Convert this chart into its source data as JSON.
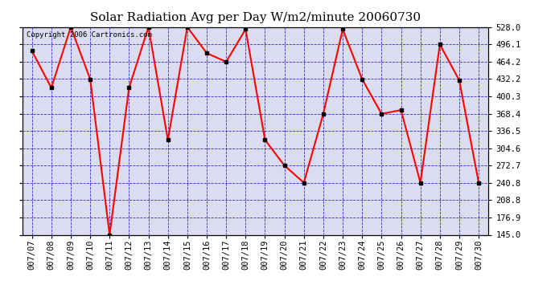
{
  "title": "Solar Radiation Avg per Day W/m2/minute 20060730",
  "copyright_text": "Copyright 2006 Cartronics.com",
  "dates": [
    "07/07",
    "07/08",
    "07/09",
    "07/10",
    "07/11",
    "07/12",
    "07/13",
    "07/14",
    "07/15",
    "07/16",
    "07/17",
    "07/18",
    "07/19",
    "07/20",
    "07/21",
    "07/22",
    "07/23",
    "07/24",
    "07/25",
    "07/26",
    "07/27",
    "07/28",
    "07/29",
    "07/30"
  ],
  "values": [
    484.0,
    416.0,
    528.0,
    432.0,
    145.0,
    416.0,
    528.0,
    320.0,
    528.0,
    480.0,
    464.0,
    524.0,
    320.0,
    272.7,
    241.0,
    368.0,
    524.0,
    432.0,
    368.0,
    375.0,
    241.0,
    496.0,
    430.0,
    241.0
  ],
  "ylim_min": 145.0,
  "ylim_max": 528.0,
  "yticks": [
    528.0,
    496.1,
    464.2,
    432.2,
    400.3,
    368.4,
    336.5,
    304.6,
    272.7,
    240.8,
    208.8,
    176.9,
    145.0
  ],
  "line_color": "red",
  "marker_color": "black",
  "bg_color": "#ffffff",
  "plot_bg_color": "#dcdcf0",
  "grid_color": "#0000cc",
  "title_fontsize": 11,
  "tick_fontsize": 7.5,
  "copyright_fontsize": 6.5
}
